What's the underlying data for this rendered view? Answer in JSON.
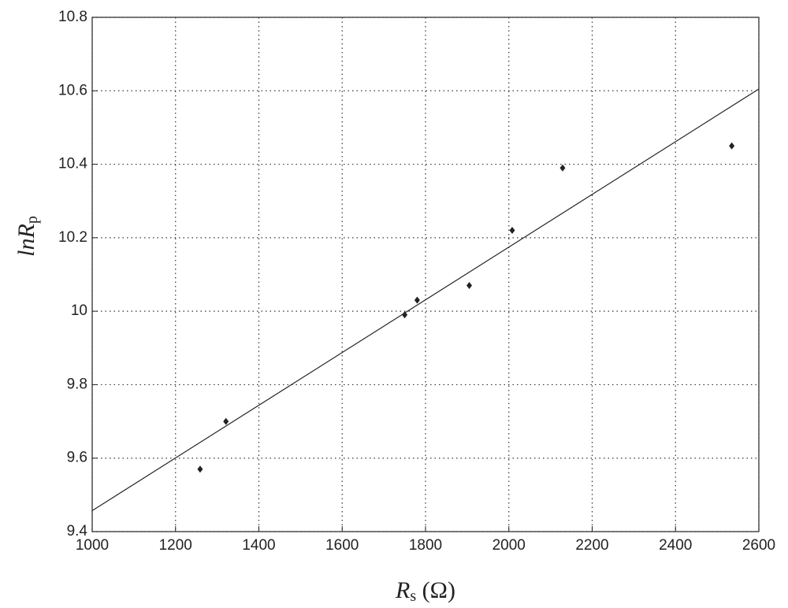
{
  "chart_data": {
    "type": "scatter",
    "xlabel": [
      "R",
      "s",
      " (Ω)"
    ],
    "ylabel": [
      "lnR",
      "p"
    ],
    "x": [
      1259,
      1321,
      1750,
      1780,
      1905,
      2008,
      2129,
      2535
    ],
    "values": [
      9.57,
      9.7,
      9.99,
      10.03,
      10.07,
      10.22,
      10.39,
      10.45
    ],
    "color": "#222222",
    "fit_line": {
      "x": [
        1000,
        2600
      ],
      "y": [
        9.457,
        10.605
      ],
      "color": "#222222"
    },
    "xlim": [
      1000,
      2600
    ],
    "xticks": [
      1000,
      1200,
      1400,
      1600,
      1800,
      2000,
      2200,
      2400,
      2600
    ],
    "ylim": [
      9.4,
      10.8
    ],
    "yticks": [
      9.4,
      9.6,
      9.8,
      10,
      10.2,
      10.4,
      10.6,
      10.8
    ],
    "grid": true
  }
}
